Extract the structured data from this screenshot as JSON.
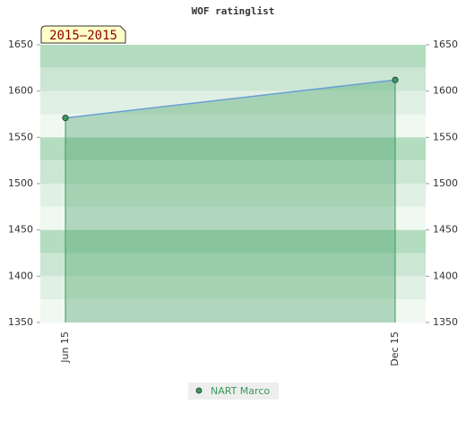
{
  "chart_data": {
    "type": "line",
    "title": "WOF ratinglist",
    "annotation": "2015–2015",
    "categories": [
      "Jun 15",
      "Dec 15"
    ],
    "series": [
      {
        "name": "NART Marco",
        "color": "#3a9a5b",
        "line_color": "#6b9fd6",
        "values": [
          1571,
          1612
        ]
      }
    ],
    "ylim": [
      1350,
      1650
    ],
    "yticks": [
      1350,
      1400,
      1450,
      1500,
      1550,
      1600,
      1650
    ],
    "y2lim": [
      1350,
      1650
    ],
    "y2ticks": [
      1350,
      1400,
      1450,
      1500,
      1550,
      1600,
      1650
    ],
    "area": true
  }
}
